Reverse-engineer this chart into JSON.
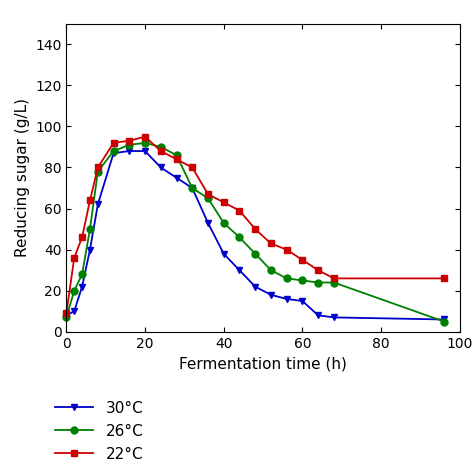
{
  "series": [
    {
      "label": "30°C",
      "color": "#0000cc",
      "marker": "v",
      "x": [
        0,
        2,
        4,
        6,
        8,
        12,
        16,
        20,
        24,
        28,
        32,
        36,
        40,
        44,
        48,
        52,
        56,
        60,
        64,
        68,
        96
      ],
      "y": [
        8,
        10,
        22,
        40,
        62,
        87,
        88,
        88,
        80,
        75,
        70,
        53,
        38,
        30,
        22,
        18,
        16,
        15,
        8,
        7,
        6
      ]
    },
    {
      "label": "26°C",
      "color": "#008000",
      "marker": "o",
      "x": [
        0,
        2,
        4,
        6,
        8,
        12,
        16,
        20,
        24,
        28,
        32,
        36,
        40,
        44,
        48,
        52,
        56,
        60,
        64,
        68,
        96
      ],
      "y": [
        7,
        20,
        28,
        50,
        78,
        88,
        91,
        92,
        90,
        86,
        70,
        65,
        53,
        46,
        38,
        30,
        26,
        25,
        24,
        24,
        5
      ]
    },
    {
      "label": "22°C",
      "color": "#cc0000",
      "marker": "s",
      "x": [
        0,
        2,
        4,
        6,
        8,
        12,
        16,
        20,
        24,
        28,
        32,
        36,
        40,
        44,
        48,
        52,
        56,
        60,
        64,
        68,
        96
      ],
      "y": [
        9,
        36,
        46,
        64,
        80,
        92,
        93,
        95,
        88,
        84,
        80,
        67,
        63,
        59,
        50,
        43,
        40,
        35,
        30,
        26,
        26
      ]
    }
  ],
  "xlabel": "Fermentation time (h)",
  "ylabel": "Reducing sugar (g/L)",
  "xlim": [
    0,
    100
  ],
  "ylim": [
    0,
    150
  ],
  "xticks": [
    0,
    20,
    40,
    60,
    80,
    100
  ],
  "yticks": [
    0,
    20,
    40,
    60,
    80,
    100,
    120,
    140
  ],
  "background_color": "#ffffff",
  "markersize": 5,
  "linewidth": 1.3,
  "tick_fontsize": 10,
  "label_fontsize": 11,
  "legend_fontsize": 11
}
